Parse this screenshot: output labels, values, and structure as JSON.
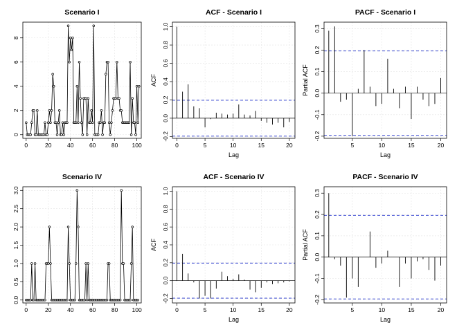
{
  "chart_data": [
    {
      "type": "line",
      "title": "Scenario I",
      "xlabel": "",
      "ylabel": "",
      "xlim": [
        -3,
        104
      ],
      "ylim": [
        -0.3,
        9.3
      ],
      "xticks": [
        0,
        20,
        40,
        60,
        80,
        100
      ],
      "yticks": [
        0,
        2,
        4,
        6,
        8
      ],
      "values": [
        1,
        0,
        0,
        0,
        0,
        1,
        2,
        2,
        0,
        0,
        2,
        0,
        0,
        0,
        0,
        0,
        0,
        1,
        0,
        0,
        1,
        2,
        1,
        2,
        5,
        4,
        1,
        1,
        0,
        1,
        2,
        0,
        0,
        1,
        0,
        1,
        1,
        1,
        9,
        6,
        8,
        7,
        8,
        1,
        1,
        1,
        4,
        1,
        6,
        3,
        1,
        0,
        3,
        3,
        3,
        0,
        3,
        1,
        1,
        2,
        1,
        9,
        0,
        0,
        0,
        0,
        1,
        1,
        2,
        0,
        1,
        1,
        5,
        6,
        6,
        1,
        0,
        1,
        2,
        3,
        3,
        3,
        6,
        3,
        3,
        2,
        2,
        1,
        1,
        1,
        1,
        1,
        1,
        1,
        6,
        0,
        3,
        1,
        1,
        0,
        4,
        1,
        4
      ]
    },
    {
      "type": "bar",
      "title": "ACF - Scenario I",
      "xlabel": "Lag",
      "ylabel": "ACF",
      "xlim": [
        -0.8,
        21
      ],
      "ylim": [
        -0.22,
        1.05
      ],
      "xticks": [
        0,
        5,
        10,
        15,
        20
      ],
      "yticks": [
        -0.2,
        0.0,
        0.2,
        0.4,
        0.6,
        0.8,
        1.0
      ],
      "ci": 0.196,
      "lags": [
        0,
        1,
        2,
        3,
        4,
        5,
        6,
        7,
        8,
        9,
        10,
        11,
        12,
        13,
        14,
        15,
        16,
        17,
        18,
        19,
        20
      ],
      "values": [
        1.0,
        0.29,
        0.37,
        0.13,
        0.11,
        -0.1,
        -0.01,
        0.06,
        0.05,
        0.04,
        0.05,
        0.15,
        0.04,
        0.03,
        0.08,
        -0.03,
        -0.05,
        -0.07,
        -0.05,
        -0.1,
        -0.04
      ]
    },
    {
      "type": "bar",
      "title": "PACF - Scenario I",
      "xlabel": "Lag",
      "ylabel": "Partial ACF",
      "xlim": [
        0.2,
        21
      ],
      "ylim": [
        -0.21,
        0.33
      ],
      "xticks": [
        5,
        10,
        15,
        20
      ],
      "yticks": [
        -0.2,
        -0.1,
        0.0,
        0.1,
        0.2,
        0.3
      ],
      "ci": 0.196,
      "lags": [
        1,
        2,
        3,
        4,
        5,
        6,
        7,
        8,
        9,
        10,
        11,
        12,
        13,
        14,
        15,
        16,
        17,
        18,
        19,
        20
      ],
      "values": [
        0.29,
        0.31,
        -0.04,
        -0.03,
        -0.2,
        0.02,
        0.2,
        0.03,
        -0.06,
        -0.05,
        0.16,
        0.02,
        -0.07,
        0.03,
        -0.12,
        0.03,
        -0.03,
        -0.06,
        -0.05,
        0.07
      ]
    },
    {
      "type": "line",
      "title": "Scenario IV",
      "xlabel": "",
      "ylabel": "",
      "xlim": [
        -3,
        104
      ],
      "ylim": [
        -0.08,
        3.1
      ],
      "xticks": [
        0,
        20,
        40,
        60,
        80,
        100
      ],
      "yticks": [
        0.0,
        0.5,
        1.0,
        1.5,
        2.0,
        2.5,
        3.0
      ],
      "values": [
        0,
        0,
        0,
        0,
        0,
        1,
        0,
        0,
        1,
        0,
        0,
        0,
        0,
        0,
        0,
        0,
        0,
        0,
        1,
        1,
        1,
        2,
        1,
        0,
        0,
        0,
        0,
        0,
        0,
        0,
        0,
        0,
        0,
        0,
        0,
        0,
        0,
        0,
        2,
        1,
        0,
        0,
        0,
        0,
        0,
        1,
        3,
        2,
        0,
        0,
        0,
        0,
        0,
        0,
        1,
        0,
        1,
        0,
        0,
        0,
        0,
        0,
        0,
        0,
        0,
        0,
        0,
        0,
        0,
        0,
        0,
        0,
        0,
        0,
        1,
        1,
        0,
        0,
        0,
        0,
        0,
        0,
        0,
        0,
        0,
        0,
        3,
        1,
        1,
        0,
        0,
        0,
        0,
        0,
        0,
        1,
        2,
        0,
        0,
        0,
        0,
        0
      ]
    },
    {
      "type": "bar",
      "title": "ACF - Scenario IV",
      "xlabel": "Lag",
      "ylabel": "ACF",
      "xlim": [
        -0.8,
        21
      ],
      "ylim": [
        -0.25,
        1.05
      ],
      "xticks": [
        0,
        5,
        10,
        15,
        20
      ],
      "yticks": [
        -0.2,
        0.0,
        0.2,
        0.4,
        0.6,
        0.8,
        1.0
      ],
      "ci": 0.196,
      "lags": [
        0,
        1,
        2,
        3,
        4,
        5,
        6,
        7,
        8,
        9,
        10,
        11,
        12,
        13,
        14,
        15,
        16,
        17,
        18,
        19,
        20
      ],
      "values": [
        1.0,
        0.3,
        0.08,
        -0.02,
        -0.2,
        -0.17,
        -0.2,
        -0.09,
        0.1,
        0.05,
        0.02,
        0.07,
        0.01,
        -0.1,
        -0.13,
        -0.08,
        -0.02,
        -0.04,
        -0.03,
        -0.02,
        -0.01
      ]
    },
    {
      "type": "bar",
      "title": "PACF - Scenario IV",
      "xlabel": "Lag",
      "ylabel": "Partial ACF",
      "xlim": [
        0.2,
        21
      ],
      "ylim": [
        -0.215,
        0.33
      ],
      "xticks": [
        5,
        10,
        15,
        20
      ],
      "yticks": [
        -0.2,
        -0.1,
        0.0,
        0.1,
        0.2,
        0.3
      ],
      "ci": 0.196,
      "lags": [
        1,
        2,
        3,
        4,
        5,
        6,
        7,
        8,
        9,
        10,
        11,
        12,
        13,
        14,
        15,
        16,
        17,
        18,
        19,
        20
      ],
      "values": [
        0.3,
        -0.01,
        -0.04,
        -0.19,
        -0.1,
        -0.14,
        0.0,
        0.12,
        -0.05,
        -0.03,
        0.03,
        0.0,
        -0.14,
        -0.03,
        -0.1,
        -0.02,
        -0.01,
        -0.06,
        -0.11,
        -0.04
      ]
    }
  ]
}
